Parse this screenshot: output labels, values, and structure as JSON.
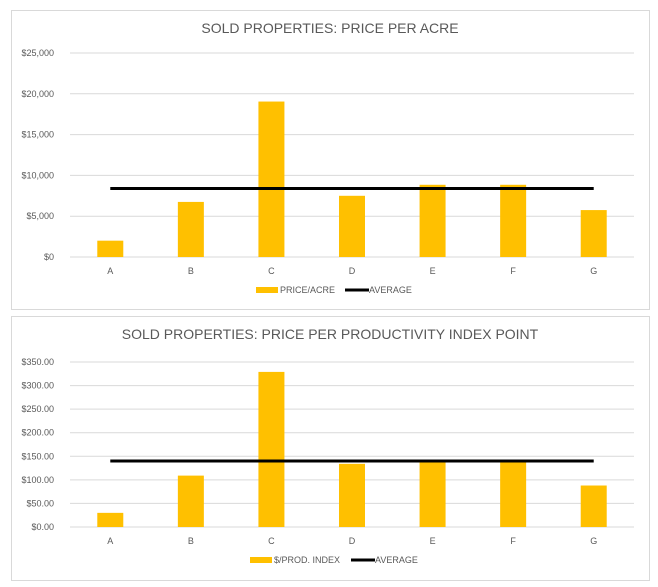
{
  "chart_data": [
    {
      "type": "bar",
      "title": "SOLD PROPERTIES: PRICE PER ACRE",
      "categories": [
        "A",
        "B",
        "C",
        "D",
        "E",
        "F",
        "G"
      ],
      "series": [
        {
          "name": "PRICE/ACRE",
          "type": "bar",
          "values": [
            2000,
            6750,
            19050,
            7500,
            8850,
            8850,
            5750
          ]
        },
        {
          "name": "AVERAGE",
          "type": "line",
          "values": [
            8400,
            8400,
            8400,
            8400,
            8400,
            8400,
            8400
          ]
        }
      ],
      "ylim": [
        0,
        25000
      ],
      "yticks": [
        0,
        5000,
        10000,
        15000,
        20000,
        25000
      ],
      "ytick_labels": [
        "$0",
        "$5,000",
        "$10,000",
        "$15,000",
        "$20,000",
        "$25,000"
      ],
      "grid": true,
      "legend": "bottom",
      "xlabel": "",
      "ylabel": ""
    },
    {
      "type": "bar",
      "title": "SOLD PROPERTIES: PRICE PER PRODUCTIVITY INDEX  POINT",
      "categories": [
        "A",
        "B",
        "C",
        "D",
        "E",
        "F",
        "G"
      ],
      "series": [
        {
          "name": "$/PROD. INDEX",
          "type": "bar",
          "values": [
            30,
            109,
            329,
            134,
            137,
            137,
            88
          ]
        },
        {
          "name": "AVERAGE",
          "type": "line",
          "values": [
            140,
            140,
            140,
            140,
            140,
            140,
            140
          ]
        }
      ],
      "ylim": [
        0,
        350
      ],
      "yticks": [
        0,
        50,
        100,
        150,
        200,
        250,
        300,
        350
      ],
      "ytick_labels": [
        "$0.00",
        "$50.00",
        "$100.00",
        "$150.00",
        "$200.00",
        "$250.00",
        "$300.00",
        "$350.00"
      ],
      "grid": true,
      "legend": "bottom",
      "xlabel": "",
      "ylabel": ""
    }
  ],
  "colors": {
    "bar": "#FFC000",
    "line": "#000000",
    "grid": "#d9d9d9",
    "text": "#595959"
  }
}
